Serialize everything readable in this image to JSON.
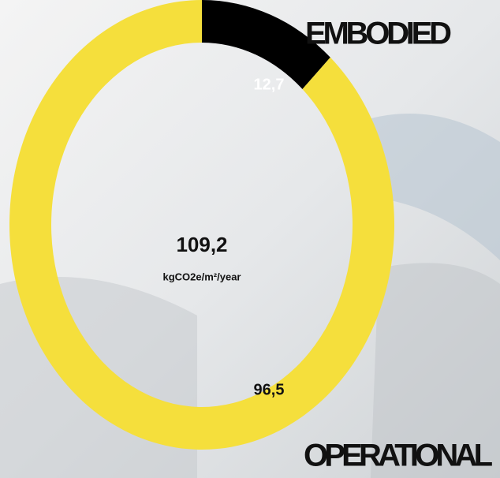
{
  "chart_data": {
    "type": "donut",
    "categories": [
      "EMBODIED",
      "OPERATIONAL"
    ],
    "values": [
      12.7,
      96.5
    ],
    "value_labels": [
      "12,7",
      "96,5"
    ],
    "colors": [
      "#000000",
      "#f5df3c"
    ],
    "center_text": "109,2",
    "unit": "kgCO2e/m²/year"
  }
}
